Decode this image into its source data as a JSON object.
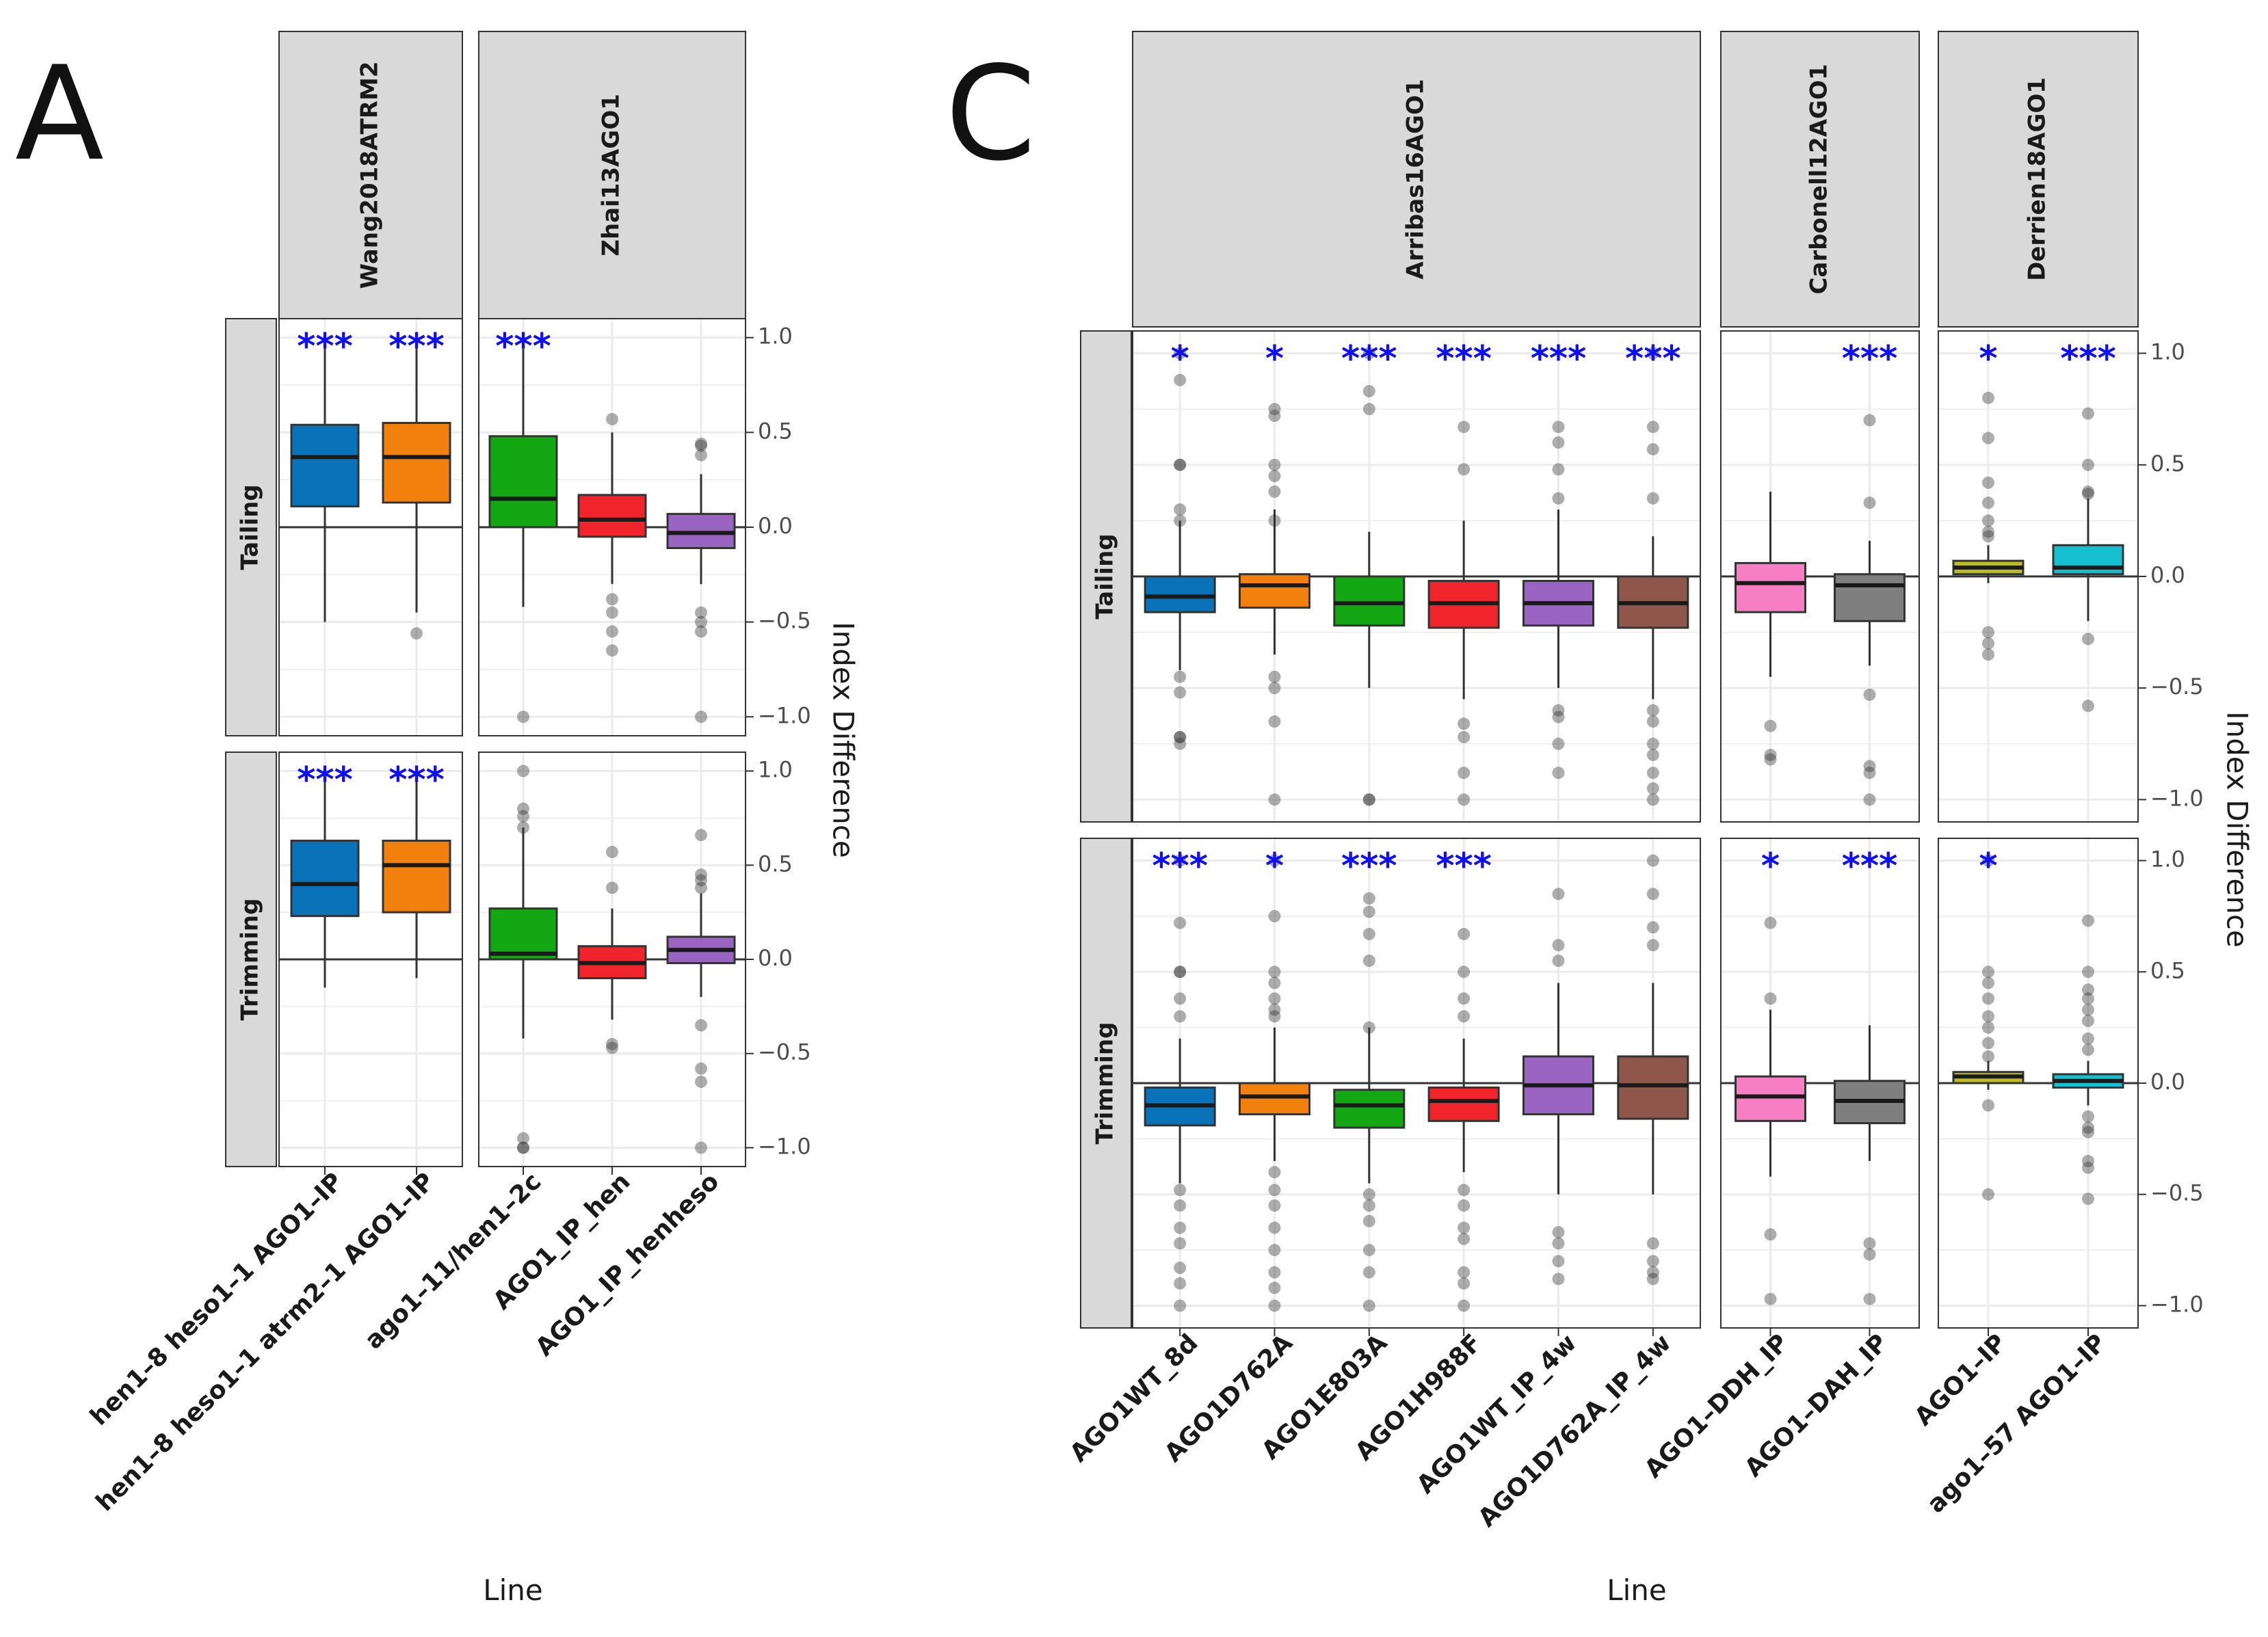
{
  "colors": {
    "AGO1_IP_wang_1": "#0a72b8",
    "AGO1_IP_wang_2": "#f2800d",
    "green": "#13a813",
    "red": "#f0242a",
    "purple": "#9a65c2",
    "brown": "#8f564b",
    "pink": "#f77ec2",
    "grey": "#7f7f7f",
    "olive": "#bcbd21",
    "cyan": "#14bfd0",
    "significance": "#1010ee",
    "strip_bg": "#d9d9d9"
  },
  "panels": [
    {
      "letter": "A",
      "xlabel": "Line",
      "ylabel": "Index Difference",
      "yticks": [
        "1.0",
        "0.5",
        "0.0",
        "-0.5",
        "-1.0"
      ],
      "row_labels": [
        "Tailing",
        "Trimming"
      ],
      "groups": [
        {
          "name": "Wang2018ATRM2",
          "lines": [
            "hen1–8 heso1–1 AGO1–IP",
            "hen1–8 heso1–1 atrm2–1 AGO1–IP"
          ]
        },
        {
          "name": "Zhai13AGO1",
          "lines": [
            "ago1–11/hen1–2c",
            "AGO1_IP_hen",
            "AGO1_IP_henheso"
          ]
        }
      ]
    },
    {
      "letter": "C",
      "xlabel": "Line",
      "ylabel": "Index Difference",
      "yticks": [
        "1.0",
        "0.5",
        "0.0",
        "-0.5",
        "-1.0"
      ],
      "row_labels": [
        "Tailing",
        "Trimming"
      ],
      "groups": [
        {
          "name": "Arribas16AGO1",
          "lines": [
            "AGO1WT_8d",
            "AGO1D762A",
            "AGO1E803A",
            "AGO1H988F",
            "AGO1WT_IP_4w",
            "AGO1D762A_IP_4w"
          ]
        },
        {
          "name": "Carbonell12AGO1",
          "lines": [
            "AGO1–DDH_IP",
            "AGO1–DAH_IP"
          ]
        },
        {
          "name": "Derrien18AGO1",
          "lines": [
            "AGO1–IP",
            "ago1–57 AGO1–IP"
          ]
        }
      ]
    }
  ],
  "chart_data": [
    {
      "type": "boxplot",
      "panel": "A",
      "ylabel": "Index Difference",
      "xlabel": "Line",
      "ylim": [
        -1.1,
        1.1
      ],
      "facets": [
        {
          "row": "Tailing",
          "group": "Wang2018ATRM2",
          "boxes": [
            {
              "line": "hen1–8 heso1–1 AGO1–IP",
              "color": "#0a72b8",
              "q1": 0.11,
              "median": 0.37,
              "q3": 0.54,
              "whisker_low": -0.5,
              "whisker_high": 1.0,
              "outliers": [],
              "sig": "***"
            },
            {
              "line": "hen1–8 heso1–1 atrm2–1 AGO1–IP",
              "color": "#f2800d",
              "q1": 0.13,
              "median": 0.37,
              "q3": 0.55,
              "whisker_low": -0.45,
              "whisker_high": 1.0,
              "outliers": [
                -0.56
              ],
              "sig": "***"
            }
          ]
        },
        {
          "row": "Tailing",
          "group": "Zhai13AGO1",
          "boxes": [
            {
              "line": "ago1–11/hen1–2c",
              "color": "#13a813",
              "q1": 0.0,
              "median": 0.15,
              "q3": 0.48,
              "whisker_low": -0.42,
              "whisker_high": 1.0,
              "outliers": [
                -1.0
              ],
              "sig": "***"
            },
            {
              "line": "AGO1_IP_hen",
              "color": "#f0242a",
              "q1": -0.05,
              "median": 0.04,
              "q3": 0.17,
              "whisker_low": -0.3,
              "whisker_high": 0.5,
              "outliers": [
                0.57,
                -0.38,
                -0.45,
                -0.55,
                -0.65
              ],
              "sig": ""
            },
            {
              "line": "AGO1_IP_henheso",
              "color": "#9a65c2",
              "q1": -0.11,
              "median": -0.03,
              "q3": 0.07,
              "whisker_low": -0.3,
              "whisker_high": 0.28,
              "outliers": [
                0.38,
                0.44,
                0.43,
                -0.45,
                -0.5,
                -0.55,
                -1.0
              ],
              "sig": ""
            }
          ]
        },
        {
          "row": "Trimming",
          "group": "Wang2018ATRM2",
          "boxes": [
            {
              "line": "hen1–8 heso1–1 AGO1–IP",
              "color": "#0a72b8",
              "q1": 0.23,
              "median": 0.4,
              "q3": 0.63,
              "whisker_low": -0.15,
              "whisker_high": 1.0,
              "outliers": [],
              "sig": "***"
            },
            {
              "line": "hen1–8 heso1–1 atrm2–1 AGO1–IP",
              "color": "#f2800d",
              "q1": 0.25,
              "median": 0.5,
              "q3": 0.63,
              "whisker_low": -0.1,
              "whisker_high": 1.0,
              "outliers": [],
              "sig": "***"
            }
          ]
        },
        {
          "row": "Trimming",
          "group": "Zhai13AGO1",
          "boxes": [
            {
              "line": "ago1–11/hen1–2c",
              "color": "#13a813",
              "q1": 0.0,
              "median": 0.03,
              "q3": 0.27,
              "whisker_low": -0.42,
              "whisker_high": 0.7,
              "outliers": [
                1.0,
                0.8,
                0.76,
                0.7,
                -0.95,
                -1.0,
                -1.0
              ],
              "sig": ""
            },
            {
              "line": "AGO1_IP_hen",
              "color": "#f0242a",
              "q1": -0.1,
              "median": -0.02,
              "q3": 0.07,
              "whisker_low": -0.32,
              "whisker_high": 0.27,
              "outliers": [
                0.57,
                0.38,
                -0.45,
                -0.47
              ],
              "sig": ""
            },
            {
              "line": "AGO1_IP_henheso",
              "color": "#9a65c2",
              "q1": -0.02,
              "median": 0.05,
              "q3": 0.12,
              "whisker_low": -0.2,
              "whisker_high": 0.35,
              "outliers": [
                0.66,
                0.45,
                0.42,
                0.38,
                -0.35,
                -0.58,
                -0.65,
                -1.0
              ],
              "sig": ""
            }
          ]
        }
      ]
    },
    {
      "type": "boxplot",
      "panel": "C",
      "ylabel": "Index Difference",
      "xlabel": "Line",
      "ylim": [
        -1.1,
        1.1
      ],
      "facets": [
        {
          "row": "Tailing",
          "group": "Arribas16AGO1",
          "boxes": [
            {
              "line": "AGO1WT_8d",
              "color": "#0a72b8",
              "q1": -0.16,
              "median": -0.09,
              "q3": 0.0,
              "whisker_low": -0.42,
              "whisker_high": 0.25,
              "outliers": [
                1.0,
                0.88,
                0.5,
                0.5,
                0.3,
                0.25,
                -0.45,
                -0.52,
                -0.72,
                -0.75,
                -0.72
              ],
              "sig": "*"
            },
            {
              "line": "AGO1D762A",
              "color": "#f2800d",
              "q1": -0.14,
              "median": -0.04,
              "q3": 0.01,
              "whisker_low": -0.35,
              "whisker_high": 0.3,
              "outliers": [
                0.75,
                0.72,
                0.5,
                0.45,
                0.38,
                0.25,
                -0.45,
                -0.5,
                -0.65,
                -1.0
              ],
              "sig": "*"
            },
            {
              "line": "AGO1E803A",
              "color": "#13a813",
              "q1": -0.22,
              "median": -0.12,
              "q3": 0.0,
              "whisker_low": -0.5,
              "whisker_high": 0.2,
              "outliers": [
                1.0,
                0.83,
                0.75,
                -1.0,
                -1.0
              ],
              "sig": "***"
            },
            {
              "line": "AGO1H988F",
              "color": "#f0242a",
              "q1": -0.23,
              "median": -0.12,
              "q3": -0.02,
              "whisker_low": -0.55,
              "whisker_high": 0.25,
              "outliers": [
                0.67,
                0.48,
                -0.66,
                -0.72,
                -0.88,
                -1.0
              ],
              "sig": "***"
            },
            {
              "line": "AGO1WT_IP_4w",
              "color": "#9a65c2",
              "q1": -0.22,
              "median": -0.12,
              "q3": -0.02,
              "whisker_low": -0.5,
              "whisker_high": 0.3,
              "outliers": [
                0.67,
                0.6,
                0.48,
                0.35,
                -0.6,
                -0.63,
                -0.75,
                -0.88
              ],
              "sig": "***"
            },
            {
              "line": "AGO1D762A_IP_4w",
              "color": "#8f564b",
              "q1": -0.23,
              "median": -0.12,
              "q3": 0.0,
              "whisker_low": -0.55,
              "whisker_high": 0.18,
              "outliers": [
                1.0,
                0.67,
                0.57,
                0.35,
                -0.6,
                -0.65,
                -0.75,
                -0.8,
                -0.88,
                -0.95,
                -1.0
              ],
              "sig": "***"
            }
          ]
        },
        {
          "row": "Tailing",
          "group": "Carbonell12AGO1",
          "boxes": [
            {
              "line": "AGO1–DDH_IP",
              "color": "#f77ec2",
              "q1": -0.16,
              "median": -0.03,
              "q3": 0.06,
              "whisker_low": -0.45,
              "whisker_high": 0.38,
              "outliers": [
                -0.67,
                -0.8,
                -0.82
              ],
              "sig": ""
            },
            {
              "line": "AGO1–DAH_IP",
              "color": "#7f7f7f",
              "q1": -0.2,
              "median": -0.04,
              "q3": 0.01,
              "whisker_low": -0.4,
              "whisker_high": 0.16,
              "outliers": [
                0.7,
                0.33,
                -0.53,
                -0.85,
                -0.88,
                -1.0
              ],
              "sig": "***"
            }
          ]
        },
        {
          "row": "Tailing",
          "group": "Derrien18AGO1",
          "boxes": [
            {
              "line": "AGO1–IP",
              "color": "#bcbd21",
              "q1": 0.01,
              "median": 0.04,
              "q3": 0.07,
              "whisker_low": -0.03,
              "whisker_high": 0.14,
              "outliers": [
                0.8,
                0.62,
                0.42,
                0.33,
                0.25,
                0.2,
                0.18,
                -0.25,
                -0.3,
                -0.35
              ],
              "sig": "*"
            },
            {
              "line": "ago1–57 AGO1–IP",
              "color": "#14bfd0",
              "q1": 0.01,
              "median": 0.04,
              "q3": 0.14,
              "whisker_low": -0.2,
              "whisker_high": 0.35,
              "outliers": [
                0.73,
                0.5,
                0.37,
                0.38,
                -0.28,
                -0.58
              ],
              "sig": "***"
            }
          ]
        },
        {
          "row": "Trimming",
          "group": "Arribas16AGO1",
          "boxes": [
            {
              "line": "AGO1WT_8d",
              "color": "#0a72b8",
              "q1": -0.19,
              "median": -0.1,
              "q3": -0.02,
              "whisker_low": -0.45,
              "whisker_high": 0.2,
              "outliers": [
                1.0,
                0.72,
                0.5,
                0.5,
                0.38,
                0.3,
                -0.48,
                -0.55,
                -0.65,
                -0.72,
                -0.83,
                -0.9,
                -1.0
              ],
              "sig": "***"
            },
            {
              "line": "AGO1D762A",
              "color": "#f2800d",
              "q1": -0.14,
              "median": -0.06,
              "q3": 0.0,
              "whisker_low": -0.35,
              "whisker_high": 0.25,
              "outliers": [
                1.0,
                0.75,
                0.5,
                0.45,
                0.38,
                0.33,
                0.3,
                -0.4,
                -0.48,
                -0.55,
                -0.65,
                -0.75,
                -0.85,
                -0.92,
                -1.0
              ],
              "sig": "*"
            },
            {
              "line": "AGO1E803A",
              "color": "#13a813",
              "q1": -0.2,
              "median": -0.1,
              "q3": -0.03,
              "whisker_low": -0.45,
              "whisker_high": 0.25,
              "outliers": [
                0.83,
                0.77,
                0.67,
                0.55,
                0.25,
                -0.5,
                -0.55,
                -0.62,
                -0.75,
                -0.85,
                -1.0
              ],
              "sig": "***"
            },
            {
              "line": "AGO1H988F",
              "color": "#f0242a",
              "q1": -0.17,
              "median": -0.08,
              "q3": -0.02,
              "whisker_low": -0.4,
              "whisker_high": 0.2,
              "outliers": [
                0.67,
                0.5,
                0.38,
                0.3,
                -0.48,
                -0.55,
                -0.65,
                -0.7,
                -0.85,
                -0.9,
                -1.0
              ],
              "sig": "***"
            },
            {
              "line": "AGO1WT_IP_4w",
              "color": "#9a65c2",
              "q1": -0.14,
              "median": -0.01,
              "q3": 0.12,
              "whisker_low": -0.5,
              "whisker_high": 0.45,
              "outliers": [
                0.85,
                0.62,
                0.55,
                -0.67,
                -0.72,
                -0.8,
                -0.88
              ],
              "sig": ""
            },
            {
              "line": "AGO1D762A_IP_4w",
              "color": "#8f564b",
              "q1": -0.16,
              "median": -0.01,
              "q3": 0.12,
              "whisker_low": -0.5,
              "whisker_high": 0.45,
              "outliers": [
                1.0,
                0.85,
                0.7,
                0.62,
                -0.72,
                -0.8,
                -0.85,
                -0.88
              ],
              "sig": ""
            }
          ]
        },
        {
          "row": "Trimming",
          "group": "Carbonell12AGO1",
          "boxes": [
            {
              "line": "AGO1–DDH_IP",
              "color": "#f77ec2",
              "q1": -0.17,
              "median": -0.06,
              "q3": 0.03,
              "whisker_low": -0.42,
              "whisker_high": 0.33,
              "outliers": [
                0.72,
                0.38,
                -0.68,
                -0.97
              ],
              "sig": "*"
            },
            {
              "line": "AGO1–DAH_IP",
              "color": "#7f7f7f",
              "q1": -0.18,
              "median": -0.08,
              "q3": 0.01,
              "whisker_low": -0.35,
              "whisker_high": 0.26,
              "outliers": [
                -0.72,
                -0.77,
                -0.97
              ],
              "sig": "***"
            }
          ]
        },
        {
          "row": "Trimming",
          "group": "Derrien18AGO1",
          "boxes": [
            {
              "line": "AGO1–IP",
              "color": "#bcbd21",
              "q1": 0.0,
              "median": 0.03,
              "q3": 0.05,
              "whisker_low": -0.03,
              "whisker_high": 0.1,
              "outliers": [
                1.0,
                0.5,
                0.45,
                0.38,
                0.3,
                0.25,
                0.18,
                0.12,
                -0.1,
                -0.5
              ],
              "sig": "*"
            },
            {
              "line": "ago1–57 AGO1–IP",
              "color": "#14bfd0",
              "q1": -0.02,
              "median": 0.01,
              "q3": 0.04,
              "whisker_low": -0.1,
              "whisker_high": 0.1,
              "outliers": [
                0.73,
                0.5,
                0.42,
                0.38,
                0.33,
                0.28,
                0.2,
                0.15,
                -0.15,
                -0.2,
                -0.22,
                -0.35,
                -0.38,
                -0.52
              ],
              "sig": ""
            }
          ]
        }
      ]
    }
  ]
}
